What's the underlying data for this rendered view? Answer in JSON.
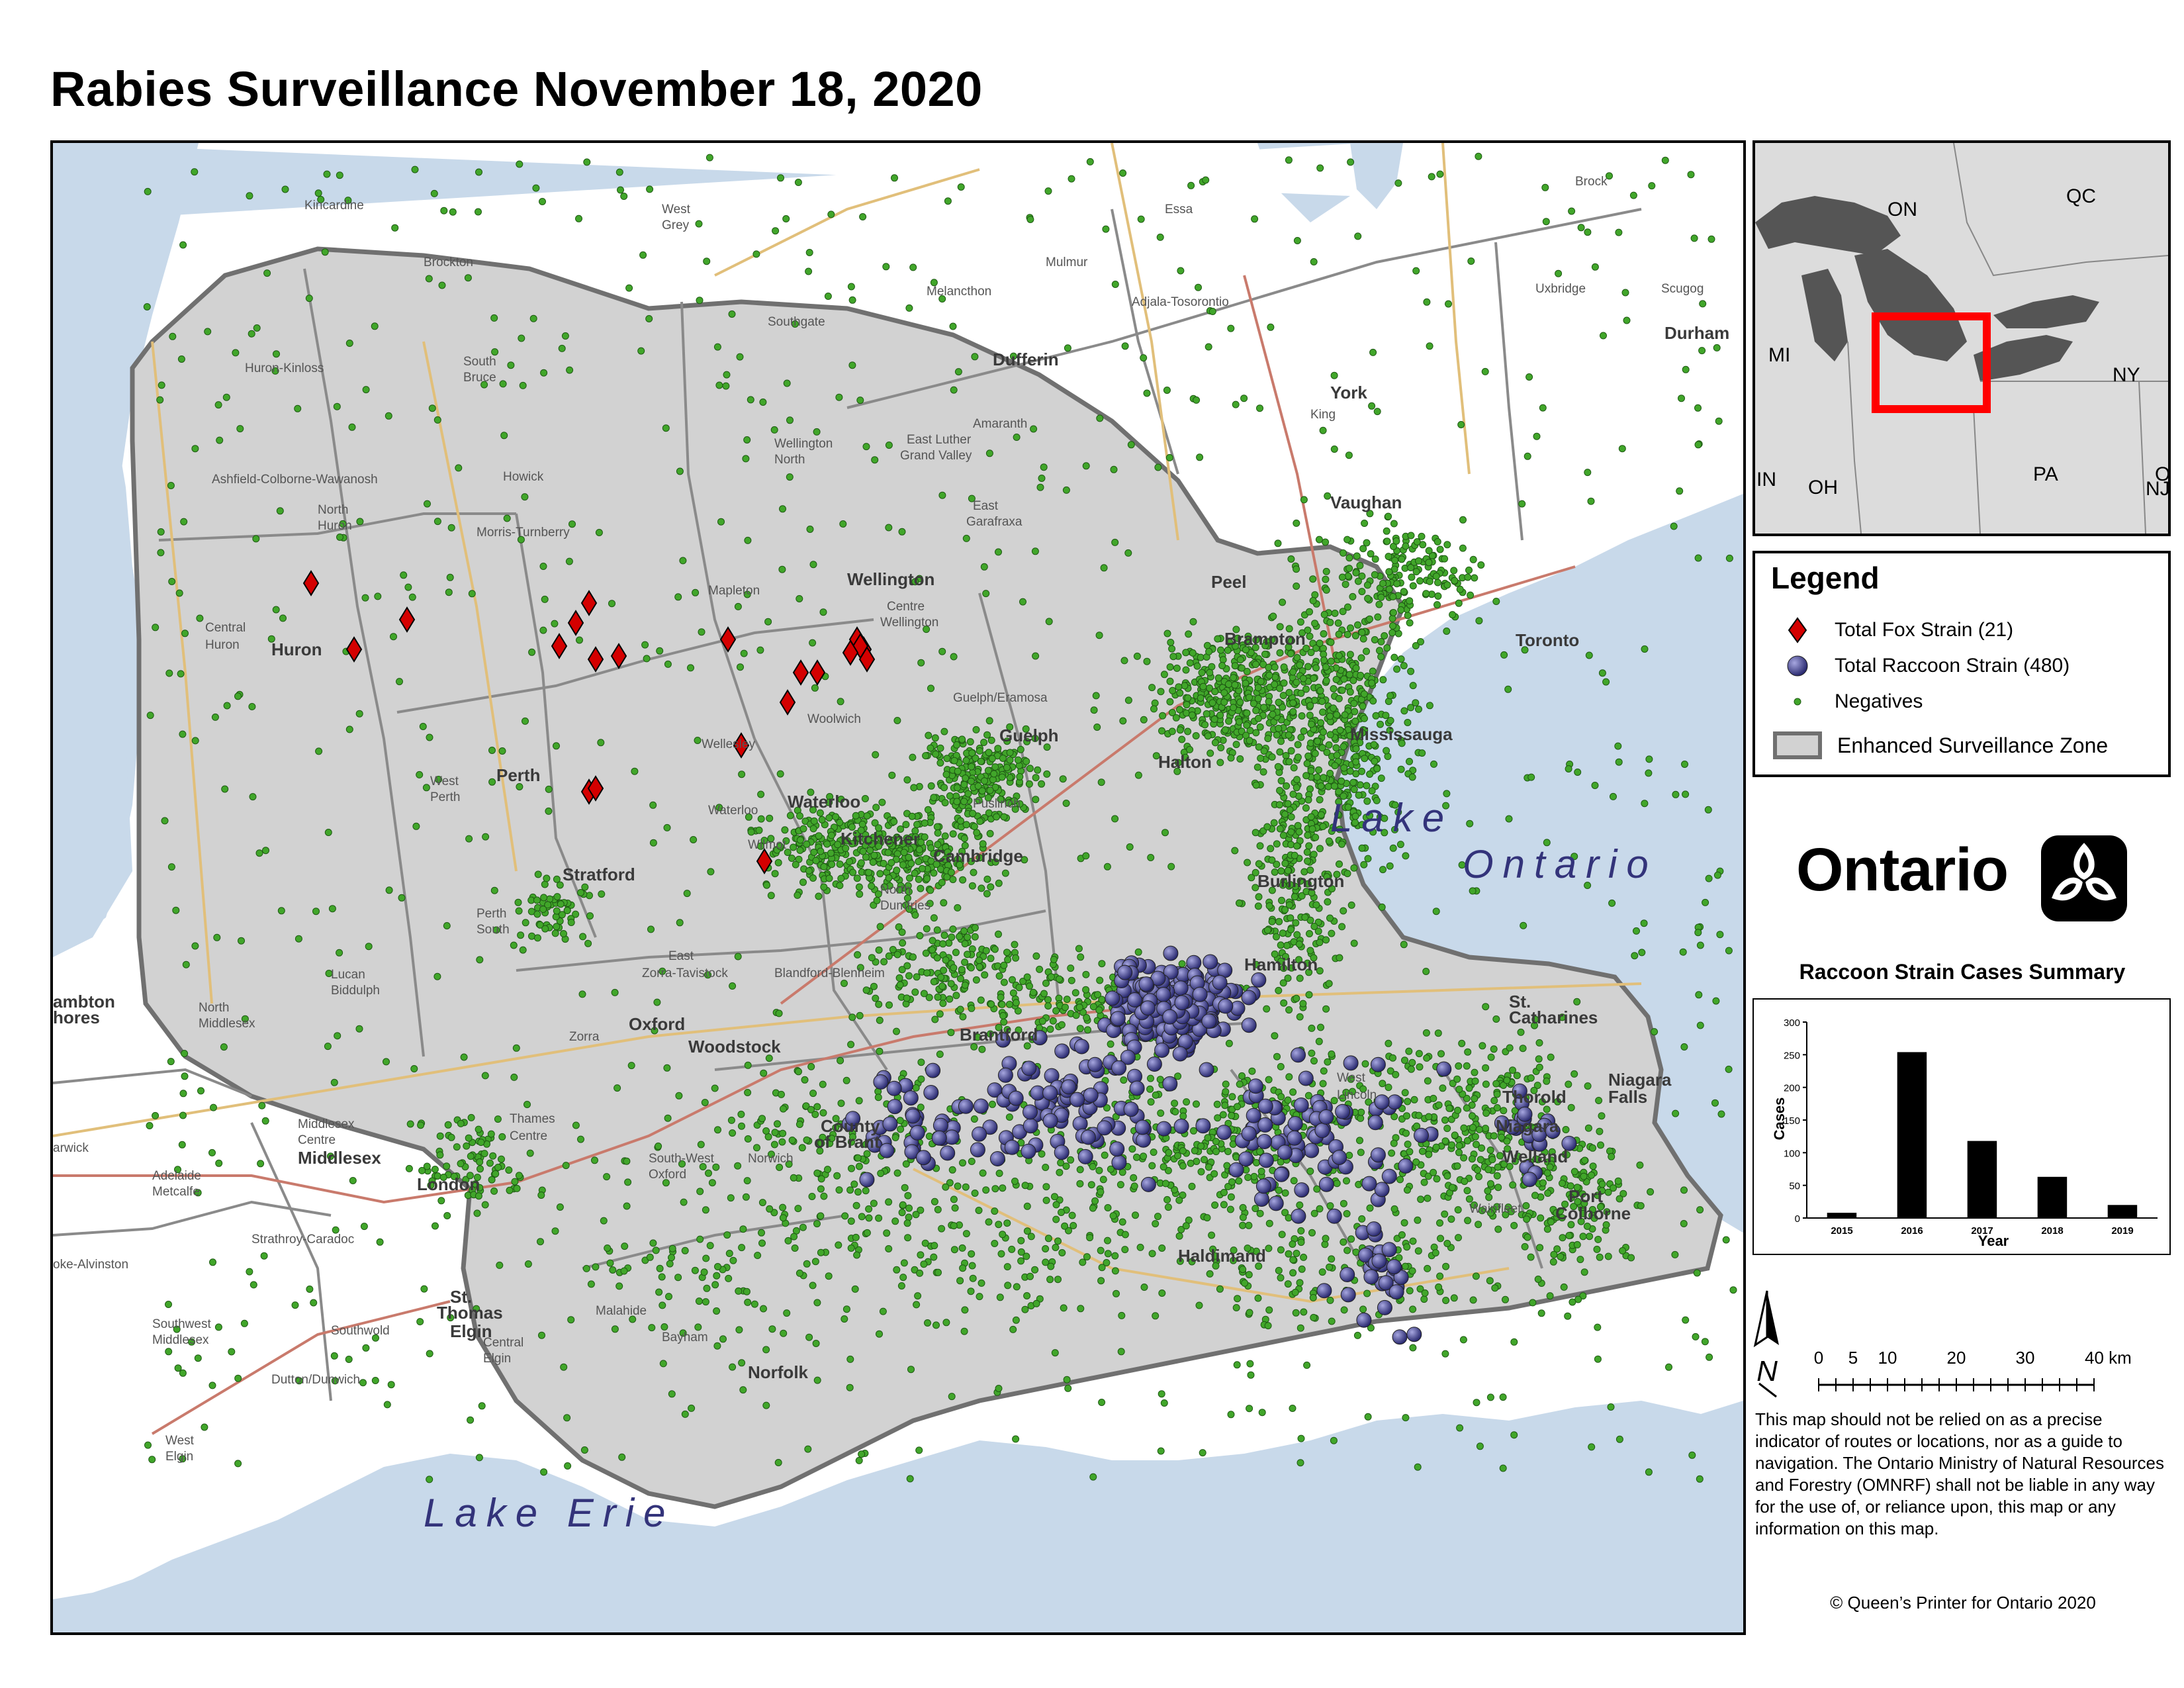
{
  "title": "Rabies Surveillance November 18, 2020",
  "map": {
    "water_labels": [
      "Lake",
      "Ontario",
      "Lake Erie"
    ],
    "place_labels": [
      {
        "text": "Kincardine",
        "bold": false
      },
      {
        "text": "West",
        "bold": false
      },
      {
        "text": "Grey",
        "bold": false
      },
      {
        "text": "Essa",
        "bold": false
      },
      {
        "text": "Brock",
        "bold": false
      },
      {
        "text": "Brockton",
        "bold": false
      },
      {
        "text": "Mulmur",
        "bold": false
      },
      {
        "text": "Melancthon",
        "bold": false
      },
      {
        "text": "Adjala-Tosorontio",
        "bold": false
      },
      {
        "text": "Uxbridge",
        "bold": false
      },
      {
        "text": "Scugog",
        "bold": false
      },
      {
        "text": "Durham",
        "bold": true
      },
      {
        "text": "Southgate",
        "bold": false
      },
      {
        "text": "Dufferin",
        "bold": true
      },
      {
        "text": "Huron-Kinloss",
        "bold": false
      },
      {
        "text": "South",
        "bold": false
      },
      {
        "text": "Bruce",
        "bold": false
      },
      {
        "text": "York",
        "bold": true
      },
      {
        "text": "King",
        "bold": false
      },
      {
        "text": "Amaranth",
        "bold": false
      },
      {
        "text": "Wellington",
        "bold": false
      },
      {
        "text": "North",
        "bold": false
      },
      {
        "text": "East Luther",
        "bold": false
      },
      {
        "text": "Grand Valley",
        "bold": false
      },
      {
        "text": "Ashfield-Colborne-Wawanosh",
        "bold": false
      },
      {
        "text": "Howick",
        "bold": false
      },
      {
        "text": "Vaughan",
        "bold": true
      },
      {
        "text": "North",
        "bold": false
      },
      {
        "text": "Huron",
        "bold": false
      },
      {
        "text": "Morris-Turnberry",
        "bold": false
      },
      {
        "text": "East",
        "bold": false
      },
      {
        "text": "Garafraxa",
        "bold": false
      },
      {
        "text": "Wellington",
        "bold": true
      },
      {
        "text": "Peel",
        "bold": true
      },
      {
        "text": "Mapleton",
        "bold": false
      },
      {
        "text": "Centre",
        "bold": false
      },
      {
        "text": "Wellington",
        "bold": false
      },
      {
        "text": "Central",
        "bold": false
      },
      {
        "text": "Huron",
        "bold": false
      },
      {
        "text": "Huron",
        "bold": true
      },
      {
        "text": "Brampton",
        "bold": true
      },
      {
        "text": "Toronto",
        "bold": true
      },
      {
        "text": "Guelph/Eramosa",
        "bold": false
      },
      {
        "text": "Woolwich",
        "bold": false
      },
      {
        "text": "Mississauga",
        "bold": true
      },
      {
        "text": "Wellesley",
        "bold": false
      },
      {
        "text": "Guelph",
        "bold": true
      },
      {
        "text": "West",
        "bold": false
      },
      {
        "text": "Perth",
        "bold": false
      },
      {
        "text": "Perth",
        "bold": true
      },
      {
        "text": "Halton",
        "bold": true
      },
      {
        "text": "Waterloo",
        "bold": true
      },
      {
        "text": "Waterloo",
        "bold": false
      },
      {
        "text": "Puslinch",
        "bold": false
      },
      {
        "text": "Kitchener",
        "bold": true
      },
      {
        "text": "Wilmot",
        "bold": false
      },
      {
        "text": "Cambridge",
        "bold": true
      },
      {
        "text": "Stratford",
        "bold": true
      },
      {
        "text": "Burlington",
        "bold": true
      },
      {
        "text": "North",
        "bold": false
      },
      {
        "text": "Dumfries",
        "bold": false
      },
      {
        "text": "Perth",
        "bold": false
      },
      {
        "text": "South",
        "bold": false
      },
      {
        "text": "East",
        "bold": false
      },
      {
        "text": "Zorra-Tavistock",
        "bold": false
      },
      {
        "text": "Blandford-Blenheim",
        "bold": false
      },
      {
        "text": "Hamilton",
        "bold": true
      },
      {
        "text": "Lucan",
        "bold": false
      },
      {
        "text": "Biddulph",
        "bold": false
      },
      {
        "text": "ambton",
        "bold": true
      },
      {
        "text": "hores",
        "bold": true
      },
      {
        "text": "North",
        "bold": false
      },
      {
        "text": "Middlesex",
        "bold": false
      },
      {
        "text": "Oxford",
        "bold": true
      },
      {
        "text": "Zorra",
        "bold": false
      },
      {
        "text": "Brantford",
        "bold": true
      },
      {
        "text": "St.",
        "bold": true
      },
      {
        "text": "Catharines",
        "bold": true
      },
      {
        "text": "Woodstock",
        "bold": true
      },
      {
        "text": "West",
        "bold": false
      },
      {
        "text": "Lincoln",
        "bold": false
      },
      {
        "text": "Thorold",
        "bold": true
      },
      {
        "text": "Niagara",
        "bold": true
      },
      {
        "text": "Falls",
        "bold": true
      },
      {
        "text": "Middlesex",
        "bold": false
      },
      {
        "text": "Centre",
        "bold": false
      },
      {
        "text": "Thames",
        "bold": false
      },
      {
        "text": "Centre",
        "bold": false
      },
      {
        "text": "County",
        "bold": true
      },
      {
        "text": "of Brant",
        "bold": true
      },
      {
        "text": "Niagara",
        "bold": true
      },
      {
        "text": "arwick",
        "bold": false
      },
      {
        "text": "Middlesex",
        "bold": true
      },
      {
        "text": "Welland",
        "bold": true
      },
      {
        "text": "Norwich",
        "bold": false
      },
      {
        "text": "South-West",
        "bold": false
      },
      {
        "text": "Oxford",
        "bold": false
      },
      {
        "text": "Adelaide",
        "bold": false
      },
      {
        "text": "Metcalfe",
        "bold": false
      },
      {
        "text": "London",
        "bold": true
      },
      {
        "text": "Port",
        "bold": true
      },
      {
        "text": "Colborne",
        "bold": true
      },
      {
        "text": "Wainfleet",
        "bold": false
      },
      {
        "text": "Strathroy-Caradoc",
        "bold": false
      },
      {
        "text": "oke-Alvinston",
        "bold": false
      },
      {
        "text": "Haldimand",
        "bold": true
      },
      {
        "text": "St.",
        "bold": true
      },
      {
        "text": "Thomas",
        "bold": true
      },
      {
        "text": "Malahide",
        "bold": false
      },
      {
        "text": "Southwest",
        "bold": false
      },
      {
        "text": "Middlesex",
        "bold": false
      },
      {
        "text": "Southwold",
        "bold": false
      },
      {
        "text": "Elgin",
        "bold": true
      },
      {
        "text": "Central",
        "bold": false
      },
      {
        "text": "Elgin",
        "bold": false
      },
      {
        "text": "Bayham",
        "bold": false
      },
      {
        "text": "Norfolk",
        "bold": true
      },
      {
        "text": "Dutton/Dunwich",
        "bold": false
      },
      {
        "text": "West",
        "bold": false
      },
      {
        "text": "Elgin",
        "bold": false
      }
    ],
    "colors": {
      "water": "#c8d9ea",
      "land": "#ffffff",
      "zone": "#d2d2d2",
      "fox": "#d40000",
      "raccoon": "#3c3c8a",
      "negative": "#41a62a"
    }
  },
  "inset": {
    "labels": [
      "ON",
      "QC",
      "MI",
      "NY",
      "PA",
      "OH",
      "IN",
      "NJ",
      "O"
    ],
    "highlight_color": "#ff0000"
  },
  "legend": {
    "title": "Legend",
    "items": [
      {
        "symbol": "fox-diamond",
        "label": "Total Fox Strain (21)"
      },
      {
        "symbol": "raccoon-circle",
        "label": "Total Raccoon Strain (480)"
      },
      {
        "symbol": "negative-dot",
        "label": "Negatives"
      },
      {
        "symbol": "zone-box",
        "label": "Enhanced Surveillance Zone"
      }
    ]
  },
  "logo": {
    "wordmark": "Ontario",
    "icon": "trillium-icon"
  },
  "summary": {
    "title": "Raccoon Strain Cases Summary"
  },
  "chart_data": {
    "type": "bar",
    "title": "Raccoon Strain Cases Summary",
    "categories": [
      "2015",
      "2016",
      "2017",
      "2018",
      "2019"
    ],
    "values": [
      8,
      254,
      118,
      63,
      20
    ],
    "xlabel": "Year",
    "ylabel": "Cases",
    "ylim": [
      0,
      300
    ],
    "yticks": [
      0,
      50,
      100,
      150,
      200,
      250,
      300
    ],
    "grid": false
  },
  "scale": {
    "ticks": [
      "0",
      "5",
      "10",
      "20",
      "30",
      "40 km"
    ],
    "north": "N"
  },
  "disclaimer": "This map should not be relied on as a precise indicator of routes or locations, nor as a guide to navigation. The Ontario Ministry of Natural Resources and Forestry (OMNRF) shall not be liable in any way for the use of, or reliance upon, this map or any information on this map.",
  "copyright": "© Queen’s Printer for Ontario 2020"
}
